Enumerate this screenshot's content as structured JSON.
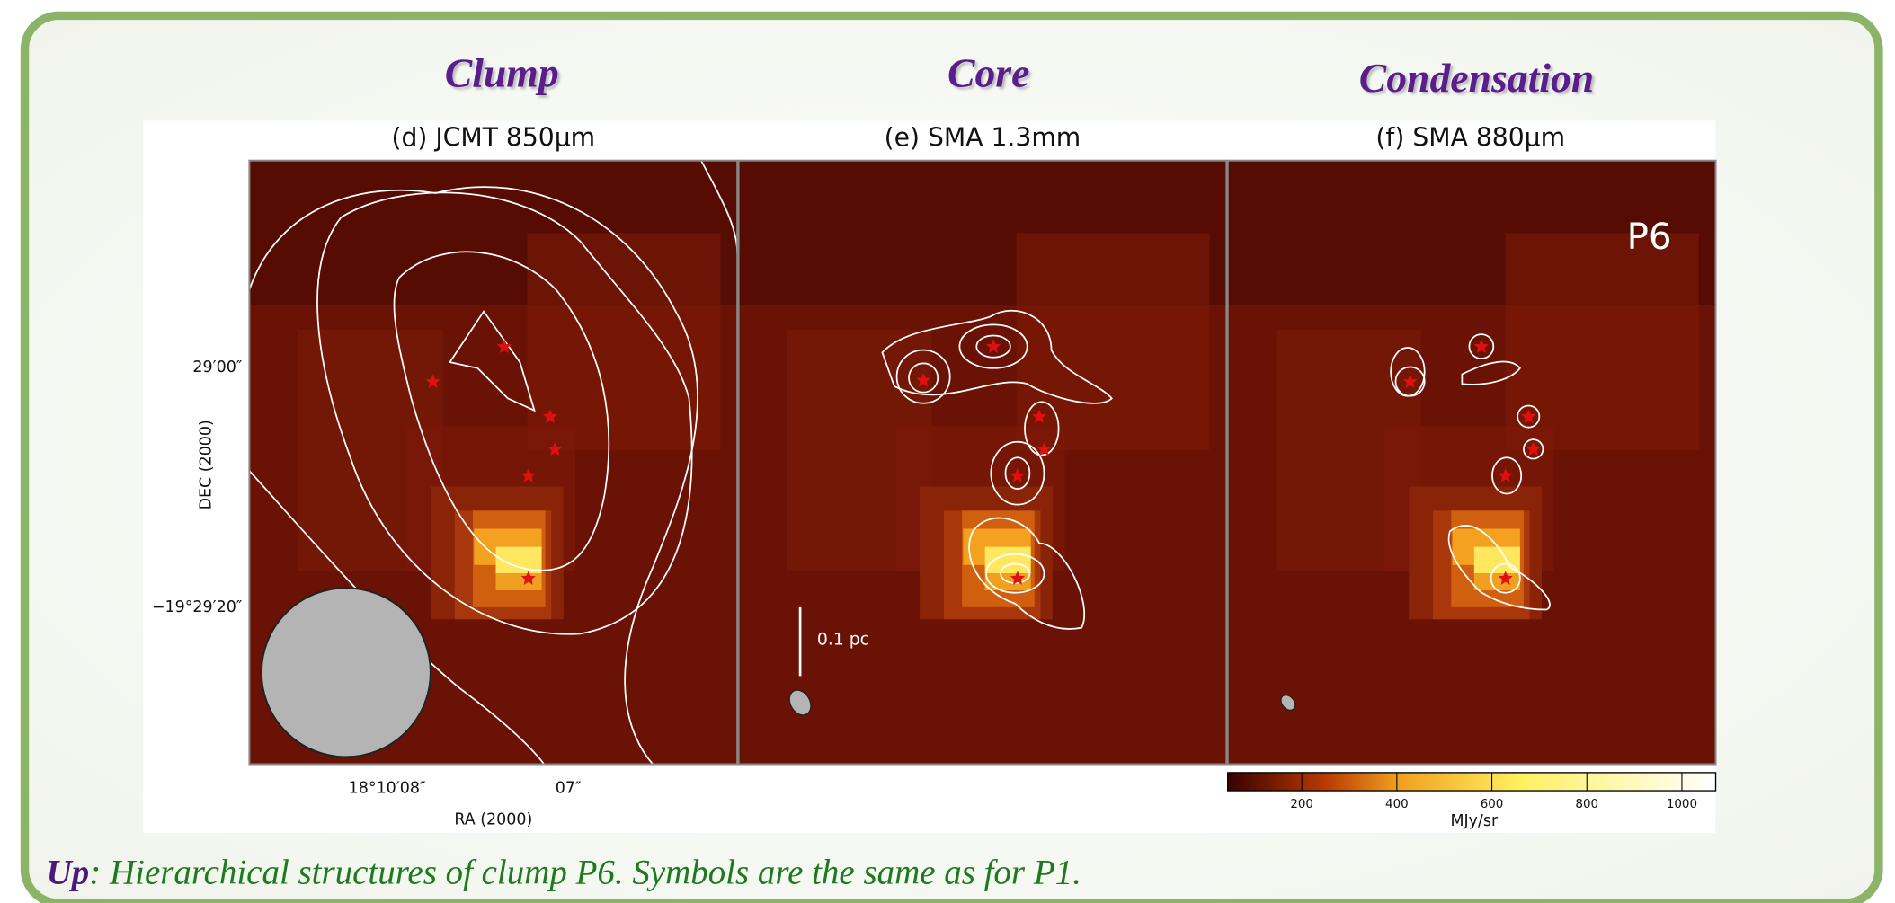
{
  "headings": [
    "Clump",
    "Core",
    "Condensation"
  ],
  "panels": [
    {
      "title": "(d) JCMT 850μm"
    },
    {
      "title": "(e) SMA 1.3mm"
    },
    {
      "title": "(f) SMA 880μm"
    }
  ],
  "axes": {
    "y_label": "DEC (2000)",
    "y_ticks": [
      "29′00″",
      "−19°29′20″"
    ],
    "x_label": "RA (2000)",
    "x_ticks": [
      "18°10′08″",
      "07″"
    ]
  },
  "scale_bar": "0.1 pc",
  "source_label": "P6",
  "colorbar": {
    "ticks": [
      200,
      400,
      600,
      800,
      1000
    ],
    "label": "MJy/sr"
  },
  "caption": {
    "lead": "Up",
    "text": ": Hierarchical structures of clump P6. Symbols are the same as for P1."
  }
}
